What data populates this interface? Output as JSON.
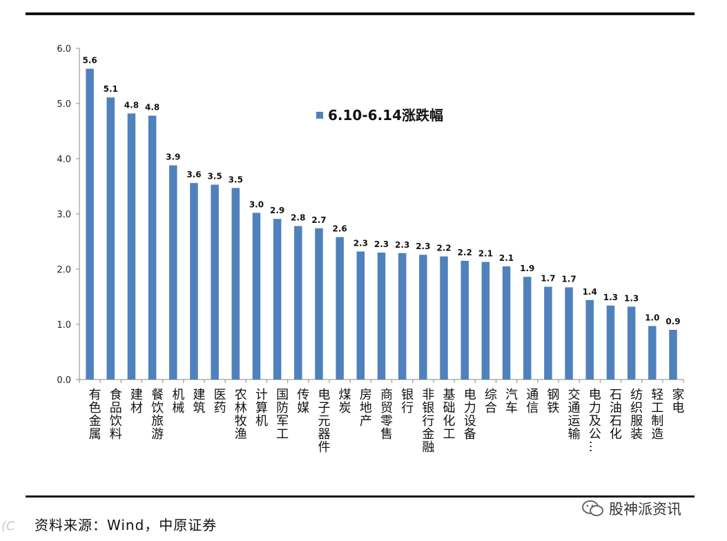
{
  "chart_data": {
    "type": "bar",
    "legend": "6.10-6.14涨跌幅",
    "legend_position": "top-center",
    "ylim": [
      0,
      6
    ],
    "yticks": [
      "0.0",
      "1.0",
      "2.0",
      "3.0",
      "4.0",
      "5.0",
      "6.0"
    ],
    "ytick_values": [
      0,
      1,
      2,
      3,
      4,
      5,
      6
    ],
    "categories": [
      "有色金属",
      "食品饮料",
      "建材",
      "餐饮旅游",
      "机械",
      "建筑",
      "医药",
      "农林牧渔",
      "计算机",
      "国防军工",
      "传媒",
      "电子元器件",
      "煤炭",
      "房地产",
      "商贸零售",
      "银行",
      "非银行金融",
      "基础化工",
      "电力设备",
      "综合",
      "汽车",
      "通信",
      "钢铁",
      "交通运输",
      "电力及公…",
      "石油石化",
      "纺织服装",
      "轻工制造",
      "家电"
    ],
    "values": [
      5.63,
      5.11,
      4.82,
      4.78,
      3.88,
      3.56,
      3.53,
      3.47,
      3.02,
      2.91,
      2.78,
      2.74,
      2.58,
      2.32,
      2.3,
      2.29,
      2.26,
      2.23,
      2.15,
      2.13,
      2.05,
      1.86,
      1.68,
      1.67,
      1.44,
      1.34,
      1.32,
      0.97,
      0.9
    ],
    "labels": [
      "5.6",
      "5.1",
      "4.8",
      "4.8",
      "3.9",
      "3.6",
      "3.5",
      "3.5",
      "3.0",
      "2.9",
      "2.8",
      "2.7",
      "2.6",
      "2.3",
      "2.3",
      "2.3",
      "2.3",
      "2.2",
      "2.2",
      "2.1",
      "2.1",
      "1.9",
      "1.7",
      "1.7",
      "1.4",
      "1.3",
      "1.3",
      "1.0",
      "0.9"
    ],
    "bar_color": "#4f81bd"
  },
  "source": "资料来源：Wind，中原证券",
  "watermark": "股神派资讯"
}
